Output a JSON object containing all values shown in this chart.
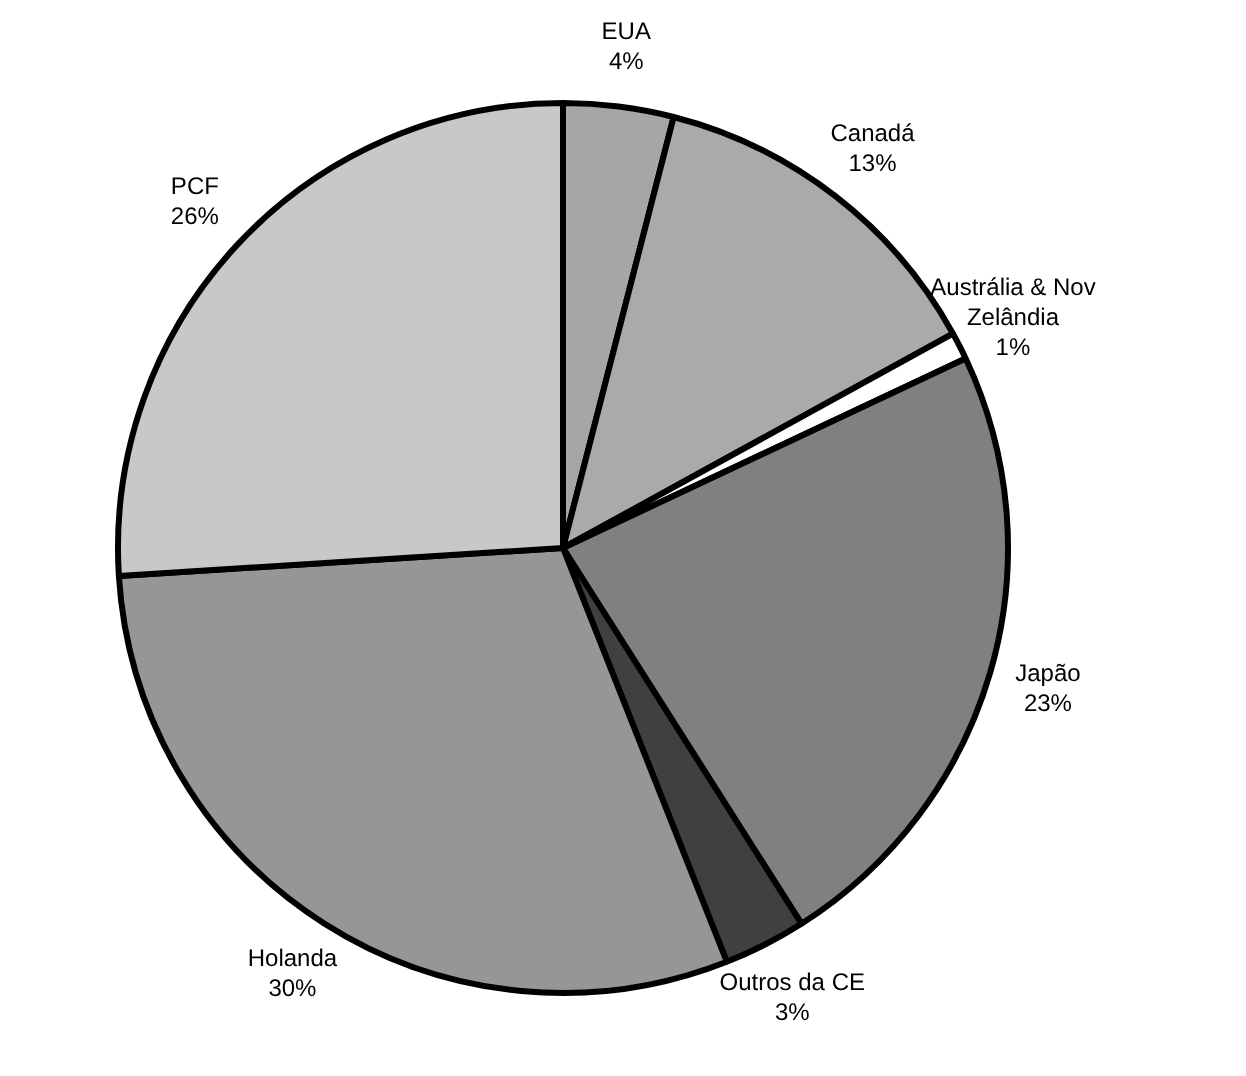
{
  "chart_data": {
    "type": "pie",
    "categories": [
      "EUA",
      "Canadá",
      "Austrália & Nov Zelândia",
      "Japão",
      "Outros da CE",
      "Holanda",
      "PCF"
    ],
    "values": [
      4,
      13,
      1,
      23,
      3,
      30,
      26
    ],
    "value_labels": [
      "4%",
      "13%",
      "1%",
      "23%",
      "3%",
      "30%",
      "26%"
    ],
    "colors": [
      "#a6a6a6",
      "#aaaaaa",
      "#ffffff",
      "#808080",
      "#404040",
      "#969696",
      "#c8c8c8"
    ],
    "legend": false
  }
}
